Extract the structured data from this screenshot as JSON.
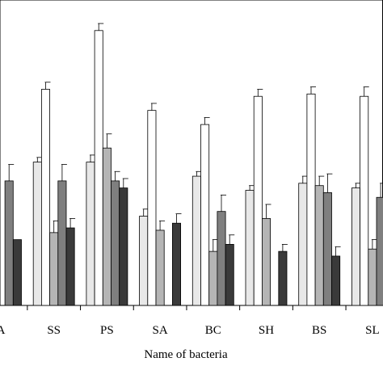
{
  "chart_data": {
    "type": "bar",
    "title": "",
    "xlabel": "Name of bacteria",
    "ylabel": "",
    "categories": [
      "A",
      "SS",
      "PS",
      "SA",
      "BC",
      "SH",
      "BS",
      "SL"
    ],
    "ylim": [
      0,
      130
    ],
    "grid": false,
    "legend": "none",
    "series": [
      {
        "color": "#e8e8e8",
        "values": [
          null,
          61,
          61,
          38,
          55,
          49,
          52,
          50
        ],
        "errors": [
          null,
          2,
          3,
          3,
          2,
          2,
          3,
          2
        ]
      },
      {
        "color": "#ffffff",
        "values": [
          null,
          92,
          117,
          83,
          77,
          89,
          90,
          89
        ],
        "errors": [
          null,
          3,
          3,
          3,
          3,
          3,
          3,
          4
        ]
      },
      {
        "color": "#b5b5b5",
        "values": [
          null,
          31,
          67,
          32,
          23,
          37,
          51,
          24
        ],
        "errors": [
          null,
          5,
          6,
          4,
          5,
          6,
          4,
          4
        ]
      },
      {
        "color": "#7f7f7f",
        "values": [
          53,
          53,
          53,
          null,
          40,
          null,
          48,
          46
        ],
        "errors": [
          7,
          7,
          4,
          null,
          7,
          null,
          8,
          6
        ]
      },
      {
        "color": "#3a3a3a",
        "values": [
          28,
          33,
          50,
          35,
          26,
          23,
          21,
          null
        ],
        "errors": [
          null,
          4,
          4,
          4,
          4,
          3,
          4,
          null
        ]
      }
    ]
  }
}
